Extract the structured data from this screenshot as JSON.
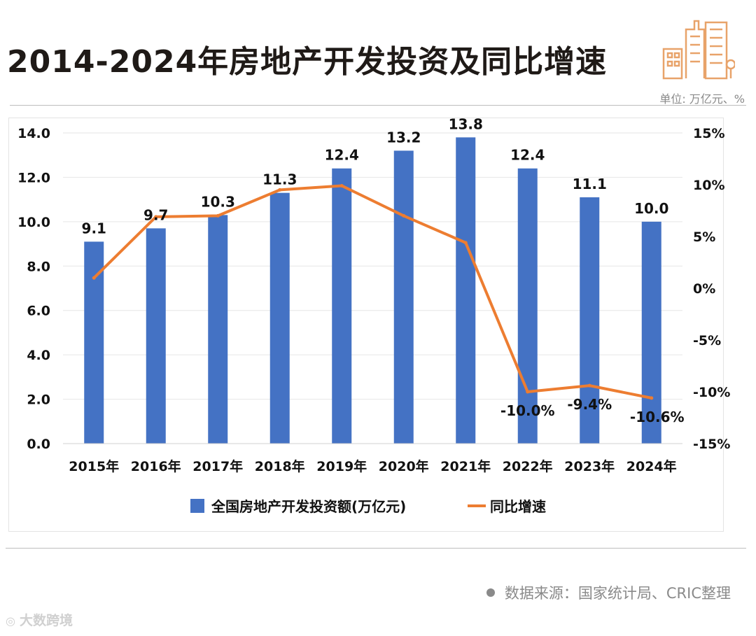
{
  "header": {
    "title": "2014-2024年房地产开发投资及同比增速",
    "unit": "单位: 万亿元、%"
  },
  "footer": {
    "source": "数据来源：国家统计局、CRIC整理",
    "weibo": "大数跨境"
  },
  "colors": {
    "bar": "#4472c4",
    "line": "#ed7d31",
    "grid": "#e6e6e6"
  },
  "chart_data": {
    "type": "bar",
    "title": "2014-2024年房地产开发投资及同比增速",
    "categories": [
      "2015年",
      "2016年",
      "2017年",
      "2018年",
      "2019年",
      "2020年",
      "2021年",
      "2022年",
      "2023年",
      "2024年"
    ],
    "series": [
      {
        "name": "全国房地产开发投资额(万亿元)",
        "type": "bar",
        "axis": "left",
        "values": [
          9.1,
          9.7,
          10.3,
          11.3,
          12.4,
          13.2,
          13.8,
          12.4,
          11.1,
          10.0
        ],
        "labels": [
          "9.1",
          "9.7",
          "10.3",
          "11.3",
          "12.4",
          "13.2",
          "13.8",
          "12.4",
          "11.1",
          "10.0"
        ]
      },
      {
        "name": "同比增速",
        "type": "line",
        "axis": "right",
        "values": [
          1.0,
          6.9,
          7.0,
          9.5,
          9.9,
          7.0,
          4.4,
          -10.0,
          -9.4,
          -10.6
        ],
        "labels": [
          "",
          "",
          "",
          "",
          "",
          "",
          "",
          "-10.0%",
          "-9.4%",
          "-10.6%"
        ]
      }
    ],
    "left_axis": {
      "ylim": [
        0,
        14
      ],
      "ticks": [
        "0.0",
        "2.0",
        "4.0",
        "6.0",
        "8.0",
        "10.0",
        "12.0",
        "14.0"
      ]
    },
    "right_axis": {
      "ylim": [
        -15,
        15
      ],
      "ticks": [
        "-15%",
        "-10%",
        "-5%",
        "0%",
        "5%",
        "10%",
        "15%"
      ]
    },
    "grid": true,
    "legend": "bottom"
  }
}
